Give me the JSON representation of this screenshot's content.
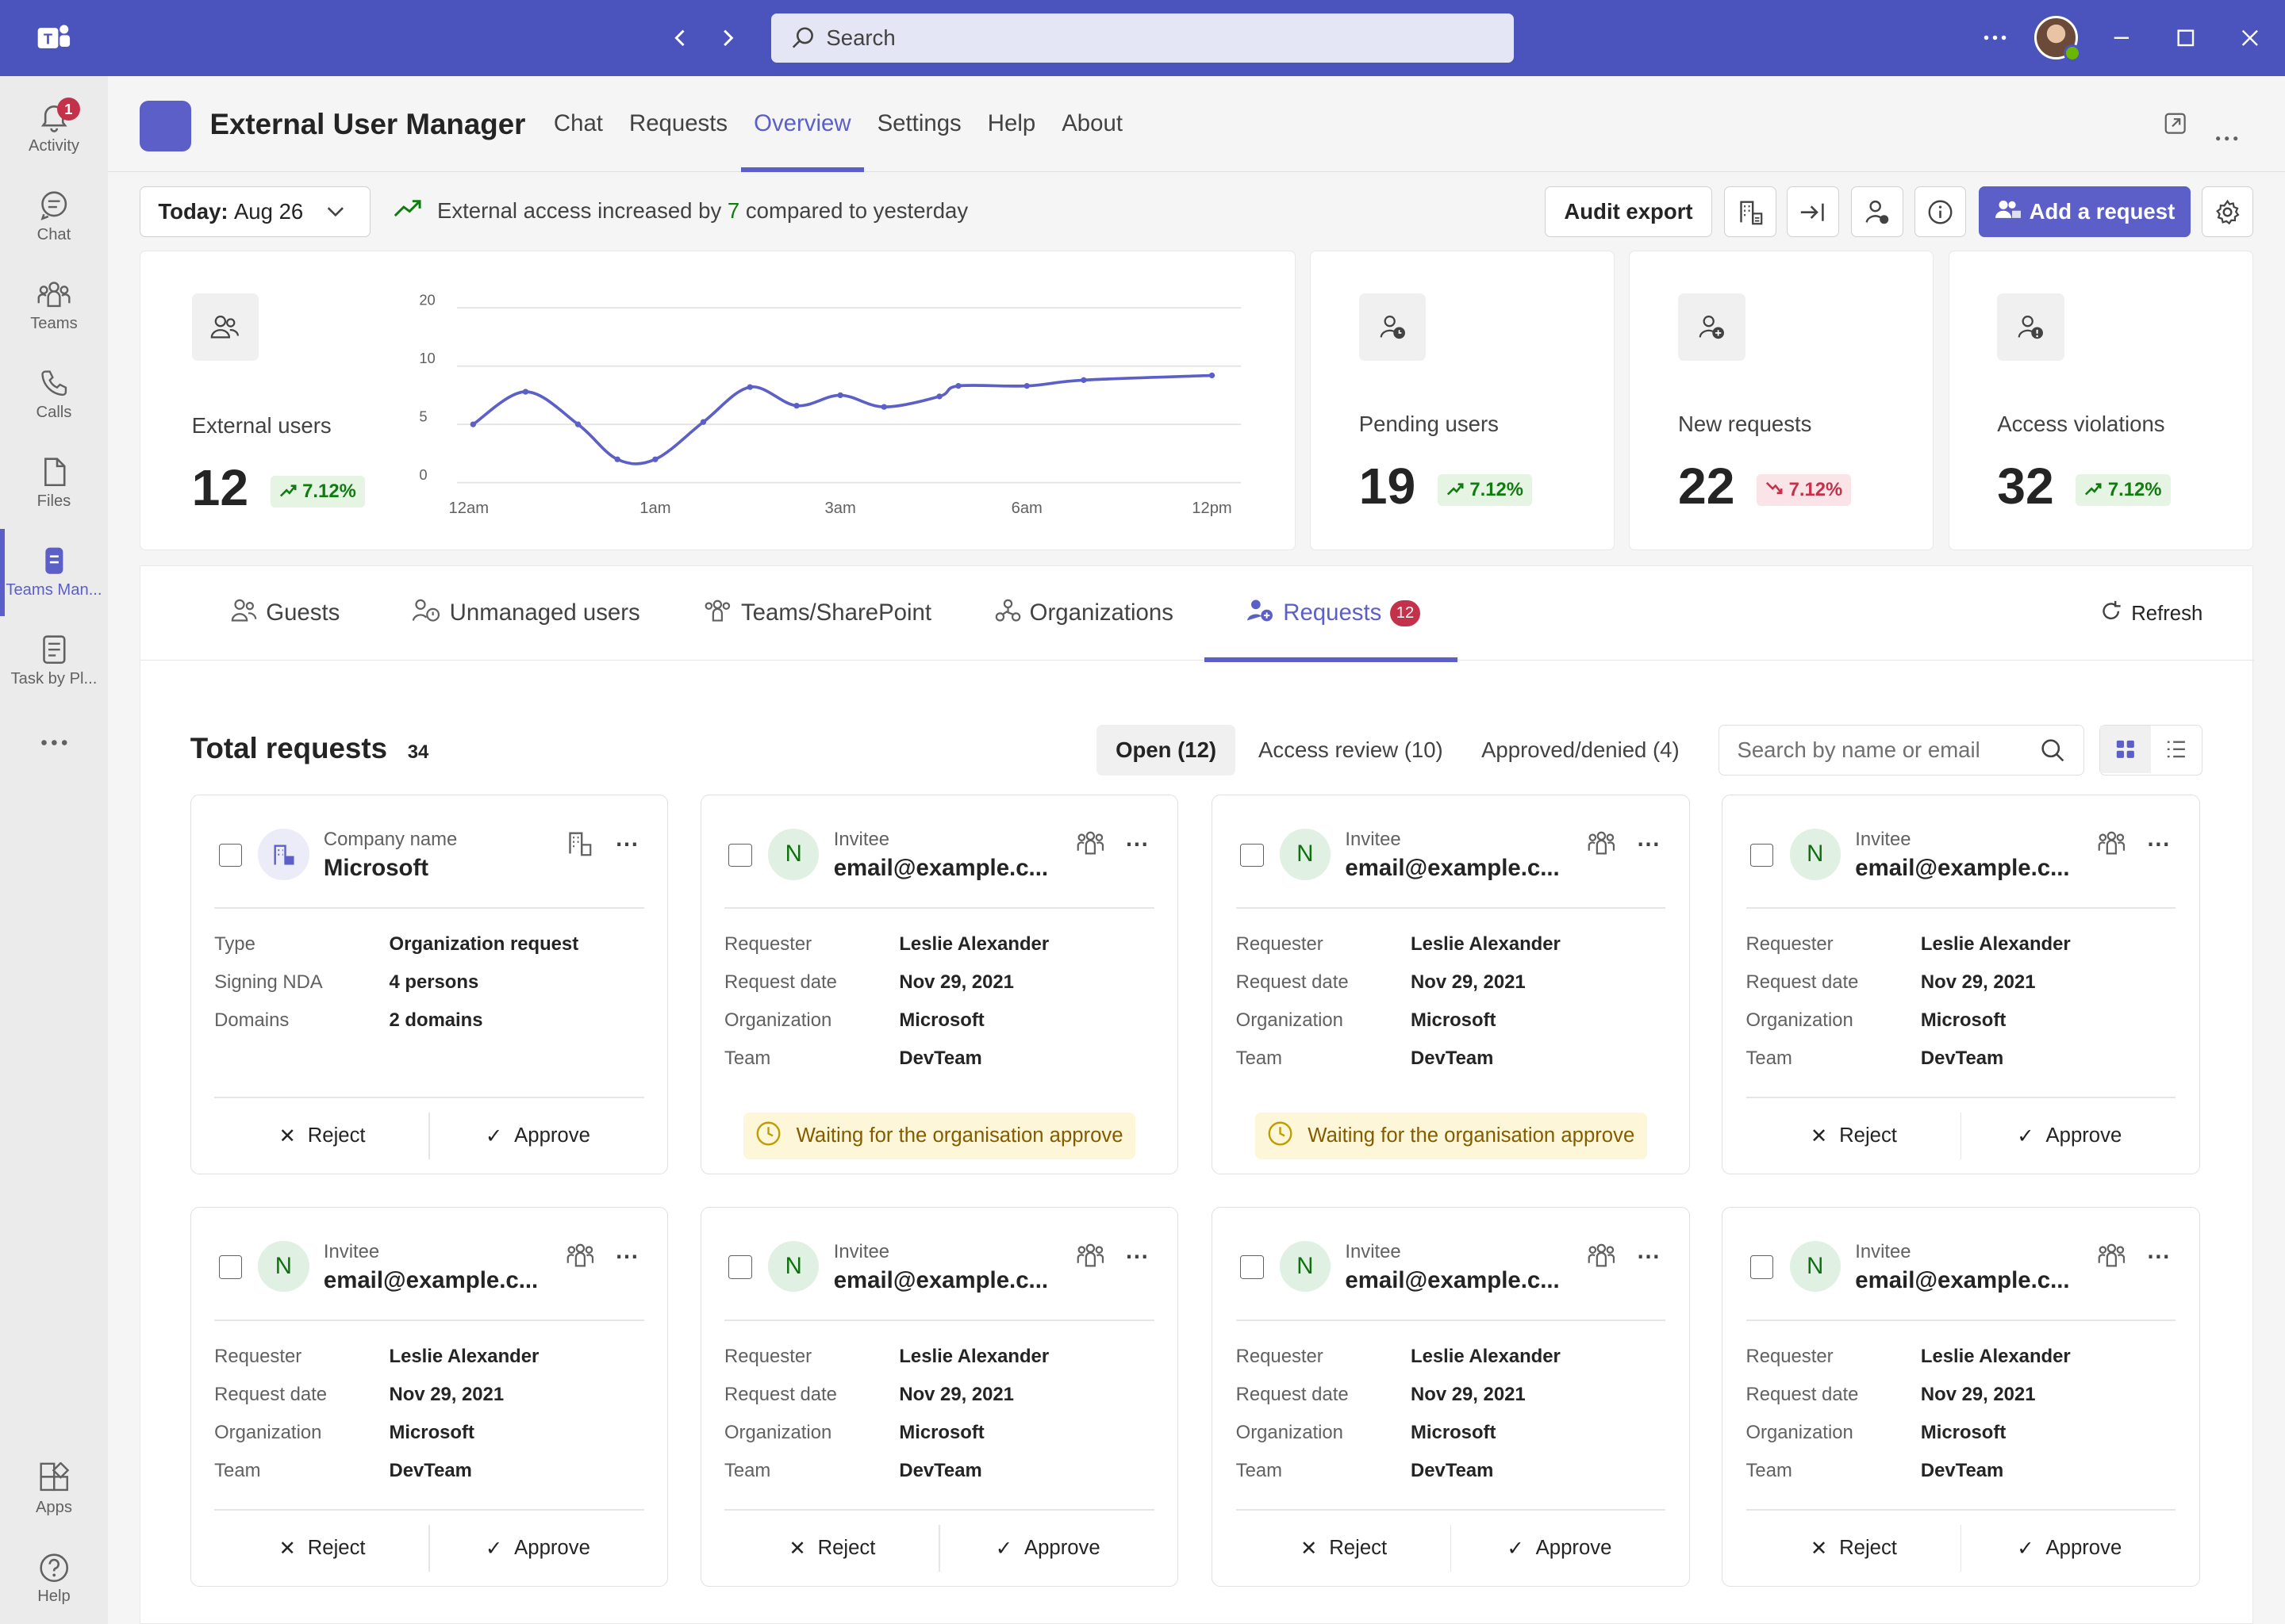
{
  "titlebar": {
    "search_placeholder": "Search"
  },
  "rail": {
    "items": [
      {
        "label": "Activity",
        "badge": "1"
      },
      {
        "label": "Chat"
      },
      {
        "label": "Teams"
      },
      {
        "label": "Calls"
      },
      {
        "label": "Files"
      },
      {
        "label": "Teams Man..."
      },
      {
        "label": "Task by Pl..."
      }
    ],
    "bottom": [
      {
        "label": "Apps"
      },
      {
        "label": "Help"
      }
    ]
  },
  "app": {
    "title": "External User Manager",
    "tabs": [
      "Chat",
      "Requests",
      "Overview",
      "Settings",
      "Help",
      "About"
    ],
    "active_tab": "Overview"
  },
  "toolbar": {
    "date_prefix": "Today:",
    "date": "Aug 26",
    "trend_pre": "External access increased by",
    "trend_num": "7",
    "trend_post": "compared to yesterday",
    "audit_export": "Audit export",
    "add_request": "Add a request"
  },
  "stats": {
    "external": {
      "label": "External users",
      "value": "12",
      "delta": "7.12%",
      "dir": "up"
    },
    "pending": {
      "label": "Pending users",
      "value": "19",
      "delta": "7.12%",
      "dir": "up"
    },
    "new": {
      "label": "New requests",
      "value": "22",
      "delta": "7.12%",
      "dir": "down"
    },
    "violations": {
      "label": "Access violations",
      "value": "32",
      "delta": "7.12%",
      "dir": "up"
    }
  },
  "chart_data": {
    "type": "line",
    "title": "",
    "xlabel": "",
    "ylabel": "",
    "y_ticks": [
      "20",
      "10",
      "5",
      "0"
    ],
    "x_ticks": [
      "12am",
      "1am",
      "3am",
      "6am",
      "12pm"
    ],
    "series": [
      {
        "values": [
          5,
          7.8,
          5,
          2,
          2,
          5.2,
          8.2,
          6.6,
          7.5,
          6.5,
          7.4,
          8.3,
          8.3,
          8.8,
          9.2
        ]
      }
    ],
    "line_color": "#5b5fc7",
    "grid": true
  },
  "subtabs": [
    {
      "label": "Guests"
    },
    {
      "label": "Unmanaged users"
    },
    {
      "label": "Teams/SharePoint"
    },
    {
      "label": "Organizations"
    },
    {
      "label": "Requests",
      "badge": "12"
    }
  ],
  "refresh_label": "Refresh",
  "requests": {
    "title": "Total requests",
    "total": "34",
    "filters": [
      "Open (12)",
      "Access review (10)",
      "Approved/denied (4)"
    ],
    "search_placeholder": "Search by name or email",
    "reject_label": "Reject",
    "approve_label": "Approve",
    "waiting_label": "Waiting for the organisation approve",
    "org_card": {
      "header_label": "Company name",
      "header_value": "Microsoft",
      "rows": [
        {
          "k": "Type",
          "v": "Organization request"
        },
        {
          "k": "Signing NDA",
          "v": "4 persons"
        },
        {
          "k": "Domains",
          "v": "2 domains"
        }
      ]
    },
    "invitee": {
      "avatar": "N",
      "header_label": "Invitee",
      "header_value": "email@example.c...",
      "rows": [
        {
          "k": "Requester",
          "v": "Leslie Alexander"
        },
        {
          "k": "Request date",
          "v": "Nov 29, 2021"
        },
        {
          "k": "Organization",
          "v": "Microsoft"
        },
        {
          "k": "Team",
          "v": "DevTeam"
        }
      ]
    }
  }
}
